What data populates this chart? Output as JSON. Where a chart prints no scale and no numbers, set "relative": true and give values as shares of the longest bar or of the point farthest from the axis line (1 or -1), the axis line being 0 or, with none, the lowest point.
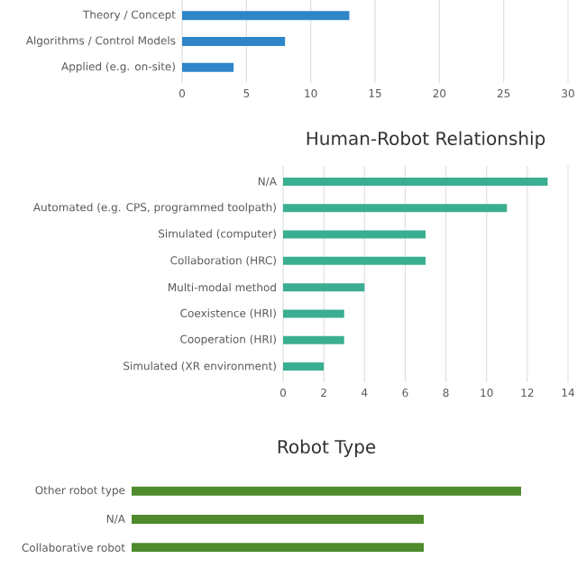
{
  "chart_data": [
    {
      "type": "bar",
      "orientation": "horizontal",
      "categories": [
        "Theory / Concept",
        "Algorithms / Control Models",
        "Applied (e.g. on-site)"
      ],
      "values": [
        13,
        8,
        4
      ],
      "color": "#2e86c9",
      "xlim": [
        0,
        30
      ],
      "xticks": [
        0,
        5,
        10,
        15,
        20,
        25,
        30
      ],
      "grid": "x"
    },
    {
      "type": "bar",
      "orientation": "horizontal",
      "title": "Human-Robot Relationship",
      "categories": [
        "N/A",
        "Automated (e.g. CPS, programmed toolpath)",
        "Simulated (computer)",
        "Collaboration (HRC)",
        "Multi-modal method",
        "Coexistence (HRI)",
        "Cooperation (HRI)",
        "Simulated (XR environment)"
      ],
      "values": [
        13,
        11,
        7,
        7,
        4,
        3,
        3,
        2
      ],
      "color": "#3aae90",
      "xlim": [
        0,
        14
      ],
      "xticks": [
        0,
        2,
        4,
        6,
        8,
        10,
        12,
        14
      ],
      "grid": "x"
    },
    {
      "type": "bar",
      "orientation": "horizontal",
      "title": "Robot Type",
      "categories": [
        "Other robot type",
        "N/A",
        "Collaborative robot"
      ],
      "values": [
        1,
        0.75,
        0.75
      ],
      "color": "#4f8a2c",
      "relative": true
    }
  ]
}
